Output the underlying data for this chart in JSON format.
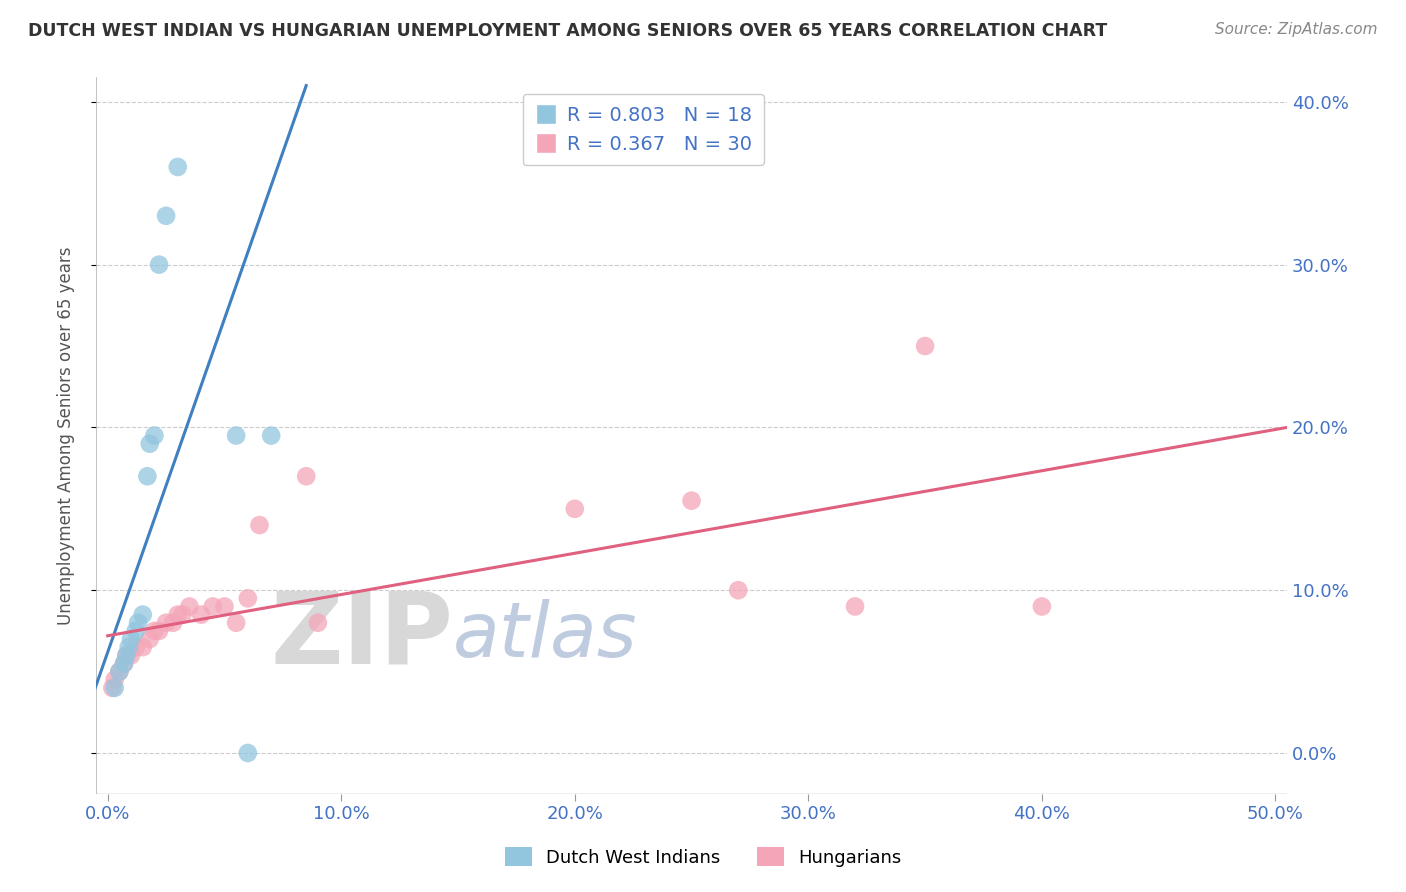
{
  "title": "DUTCH WEST INDIAN VS HUNGARIAN UNEMPLOYMENT AMONG SENIORS OVER 65 YEARS CORRELATION CHART",
  "source": "Source: ZipAtlas.com",
  "xlim": [
    -0.005,
    0.505
  ],
  "ylim": [
    -0.025,
    0.415
  ],
  "ylabel": "Unemployment Among Seniors over 65 years",
  "legend_label1": "Dutch West Indians",
  "legend_label2": "Hungarians",
  "R1": "0.803",
  "N1": "18",
  "R2": "0.367",
  "N2": "30",
  "color_blue": "#92c5de",
  "color_pink": "#f4a6b8",
  "line_color_blue": "#4080c0",
  "line_color_pink": "#e06080",
  "watermark_zip": "ZIP",
  "watermark_atlas": "atlas",
  "dwi_x": [
    0.003,
    0.005,
    0.007,
    0.008,
    0.009,
    0.01,
    0.012,
    0.013,
    0.015,
    0.017,
    0.018,
    0.02,
    0.022,
    0.025,
    0.03,
    0.055,
    0.06,
    0.07
  ],
  "dwi_y": [
    0.04,
    0.05,
    0.055,
    0.06,
    0.065,
    0.07,
    0.075,
    0.08,
    0.085,
    0.17,
    0.19,
    0.195,
    0.3,
    0.33,
    0.36,
    0.195,
    0.0,
    0.195
  ],
  "hun_x": [
    0.002,
    0.003,
    0.005,
    0.007,
    0.008,
    0.01,
    0.012,
    0.015,
    0.018,
    0.02,
    0.022,
    0.025,
    0.028,
    0.03,
    0.032,
    0.035,
    0.04,
    0.045,
    0.05,
    0.055,
    0.06,
    0.065,
    0.085,
    0.09,
    0.2,
    0.25,
    0.27,
    0.32,
    0.35,
    0.4
  ],
  "hun_y": [
    0.04,
    0.045,
    0.05,
    0.055,
    0.06,
    0.06,
    0.065,
    0.065,
    0.07,
    0.075,
    0.075,
    0.08,
    0.08,
    0.085,
    0.085,
    0.09,
    0.085,
    0.09,
    0.09,
    0.08,
    0.095,
    0.14,
    0.17,
    0.08,
    0.15,
    0.155,
    0.1,
    0.09,
    0.25,
    0.09
  ],
  "blue_line_x": [
    -0.02,
    0.085
  ],
  "blue_line_y": [
    -0.02,
    0.41
  ],
  "pink_line_x": [
    0.0,
    0.505
  ],
  "pink_line_y": [
    0.072,
    0.2
  ],
  "xticks": [
    0.0,
    0.1,
    0.2,
    0.3,
    0.4,
    0.5
  ],
  "yticks": [
    0.0,
    0.1,
    0.2,
    0.3,
    0.4
  ],
  "xtick_labels": [
    "0.0%",
    "10.0%",
    "20.0%",
    "30.0%",
    "40.0%",
    "50.0%"
  ],
  "ytick_labels": [
    "0.0%",
    "10.0%",
    "20.0%",
    "30.0%",
    "40.0%"
  ]
}
